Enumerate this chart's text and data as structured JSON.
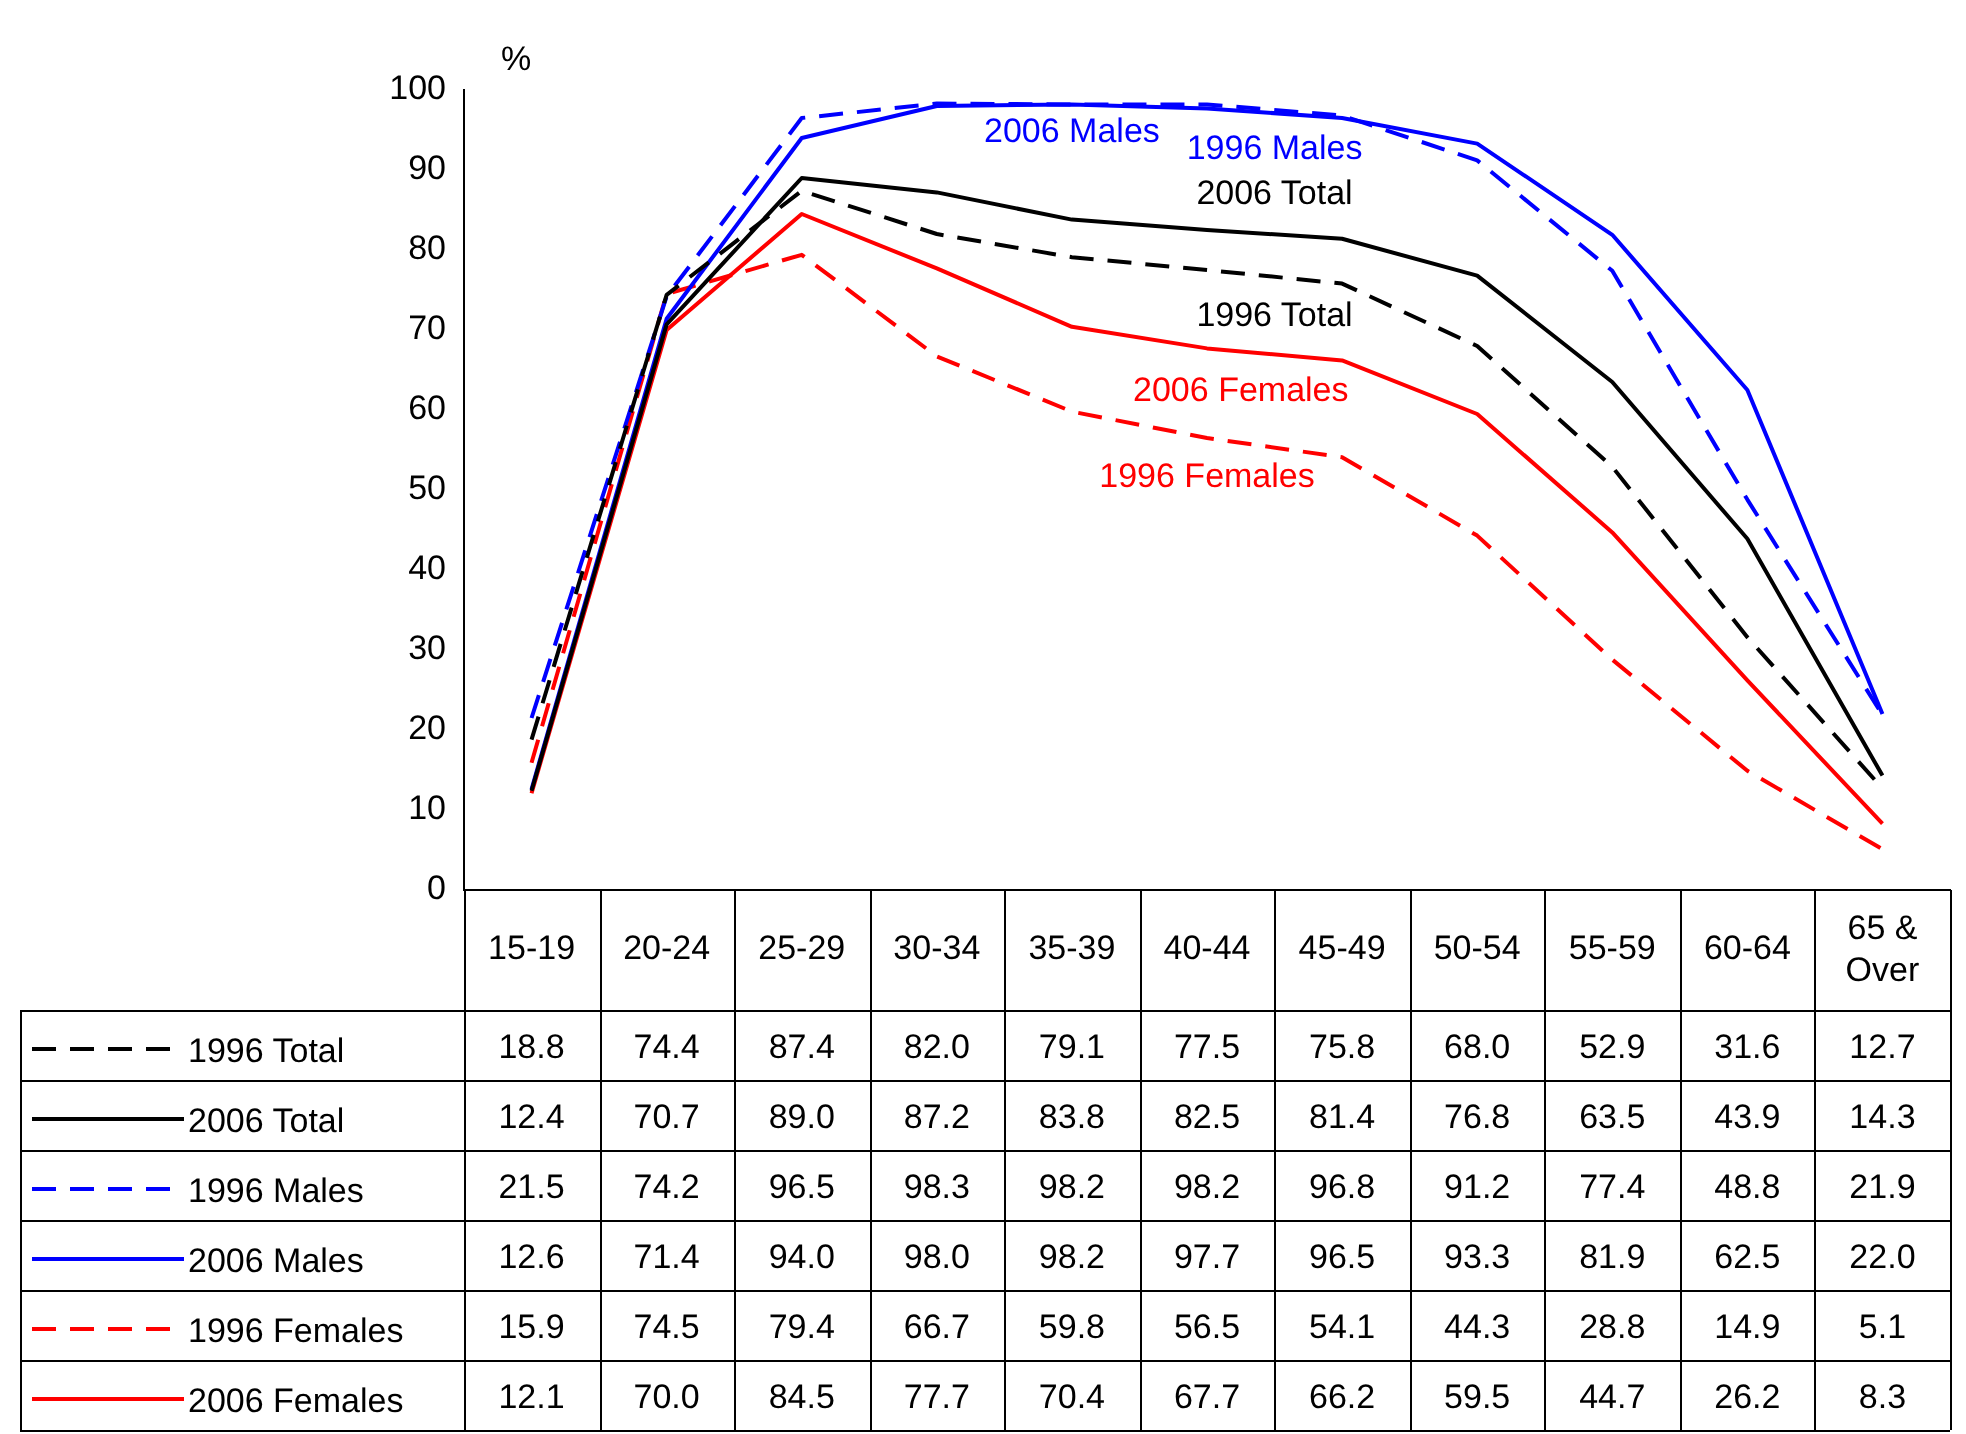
{
  "chart_data": {
    "type": "line",
    "ylabel": "%",
    "categories": [
      "15-19",
      "20-24",
      "25-29",
      "30-34",
      "35-39",
      "40-44",
      "45-49",
      "50-54",
      "55-59",
      "60-64",
      "65 & Over"
    ],
    "ylim": [
      0,
      100
    ],
    "yticks": [
      0,
      10,
      20,
      30,
      40,
      50,
      60,
      70,
      80,
      90,
      100
    ],
    "grid": false,
    "legend": "bottom left",
    "marker": "none",
    "series": [
      {
        "name": "1996 Total",
        "color": "#000000",
        "line_style": "dashed",
        "values": [
          18.8,
          74.4,
          87.4,
          82.0,
          79.1,
          77.5,
          75.8,
          68.0,
          52.9,
          31.6,
          12.7
        ],
        "value_labels": [
          "18.8",
          "74.4",
          "87.4",
          "82.0",
          "79.1",
          "77.5",
          "75.8",
          "68.0",
          "52.9",
          "31.6",
          "12.7"
        ]
      },
      {
        "name": "2006 Total",
        "color": "#000000",
        "line_style": "solid",
        "values": [
          12.4,
          70.7,
          89.0,
          87.2,
          83.8,
          82.5,
          81.4,
          76.8,
          63.5,
          43.9,
          14.3
        ],
        "value_labels": [
          "12.4",
          "70.7",
          "89.0",
          "87.2",
          "83.8",
          "82.5",
          "81.4",
          "76.8",
          "63.5",
          "43.9",
          "14.3"
        ]
      },
      {
        "name": "1996 Males",
        "color": "#0000ff",
        "line_style": "dashed",
        "values": [
          21.5,
          74.2,
          96.5,
          98.3,
          98.2,
          98.2,
          96.8,
          91.2,
          77.4,
          48.8,
          21.9
        ],
        "value_labels": [
          "21.5",
          "74.2",
          "96.5",
          "98.3",
          "98.2",
          "98.2",
          "96.8",
          "91.2",
          "77.4",
          "48.8",
          "21.9"
        ]
      },
      {
        "name": "2006 Males",
        "color": "#0000ff",
        "line_style": "solid",
        "values": [
          12.6,
          71.4,
          94.0,
          98.0,
          98.2,
          97.7,
          96.5,
          93.3,
          81.9,
          62.5,
          22.0
        ],
        "value_labels": [
          "12.6",
          "71.4",
          "94.0",
          "98.0",
          "98.2",
          "97.7",
          "96.5",
          "93.3",
          "81.9",
          "62.5",
          "22.0"
        ]
      },
      {
        "name": "1996 Females",
        "color": "#ff0000",
        "line_style": "dashed",
        "values": [
          15.9,
          74.5,
          79.4,
          66.7,
          59.8,
          56.5,
          54.1,
          44.3,
          28.8,
          14.9,
          5.1
        ],
        "value_labels": [
          "15.9",
          "74.5",
          "79.4",
          "66.7",
          "59.8",
          "56.5",
          "54.1",
          "44.3",
          "28.8",
          "14.9",
          "5.1"
        ]
      },
      {
        "name": "2006 Females",
        "color": "#ff0000",
        "line_style": "solid",
        "values": [
          12.1,
          70.0,
          84.5,
          77.7,
          70.4,
          67.7,
          66.2,
          59.5,
          44.7,
          26.2,
          8.3
        ],
        "value_labels": [
          "12.1",
          "70.0",
          "84.5",
          "77.7",
          "70.4",
          "67.7",
          "66.2",
          "59.5",
          "44.7",
          "26.2",
          "8.3"
        ]
      }
    ]
  }
}
